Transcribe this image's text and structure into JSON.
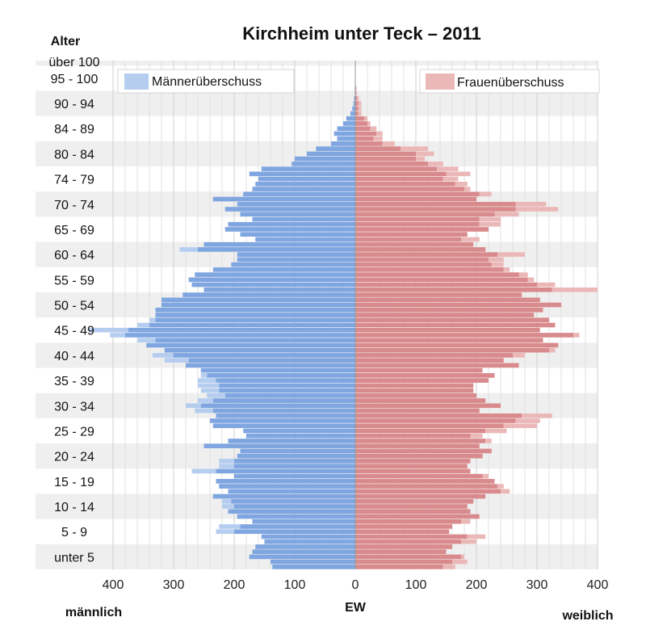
{
  "chart_data": {
    "type": "bar",
    "subtype": "population-pyramid",
    "title": "Kirchheim unter Teck – 2011",
    "y_axis_title": "Alter",
    "xlabel": "EW",
    "left_side_label": "männlich",
    "right_side_label": "weiblich",
    "xlim": [
      -400,
      400
    ],
    "x_ticks": [
      {
        "value": -400,
        "label": "400"
      },
      {
        "value": -300,
        "label": "300"
      },
      {
        "value": -200,
        "label": "200"
      },
      {
        "value": -100,
        "label": "100"
      },
      {
        "value": 0,
        "label": "0"
      },
      {
        "value": 100,
        "label": "100"
      },
      {
        "value": 200,
        "label": "200"
      },
      {
        "value": 300,
        "label": "300"
      },
      {
        "value": 400,
        "label": "400"
      }
    ],
    "age_group_labels": [
      "über 100",
      "95 - 100",
      "90 - 94",
      "84 - 89",
      "80 - 84",
      "74 - 79",
      "70 - 74",
      "65 - 69",
      "60 - 64",
      "55 - 59",
      "50 - 54",
      "45 - 49",
      "40 - 44",
      "35 - 39",
      "30 - 34",
      "25 - 29",
      "20 - 24",
      "15 - 19",
      "10 - 14",
      "5 - 9",
      "unter 5"
    ],
    "legend": [
      {
        "name": "Männerüberschuss",
        "color": "#b5cdef",
        "position": "top-left"
      },
      {
        "name": "Frauenüberschuss",
        "color": "#ebb8b8",
        "position": "top-right"
      }
    ],
    "colors": {
      "male": "#7fa6e0",
      "female": "#d98a8c",
      "male_surplus": "#b5cdef",
      "female_surplus": "#ebb8b8",
      "band": "#efefef"
    },
    "ages": [
      0,
      1,
      2,
      3,
      4,
      5,
      6,
      7,
      8,
      9,
      10,
      11,
      12,
      13,
      14,
      15,
      16,
      17,
      18,
      19,
      20,
      21,
      22,
      23,
      24,
      25,
      26,
      27,
      28,
      29,
      30,
      31,
      32,
      33,
      34,
      35,
      36,
      37,
      38,
      39,
      40,
      41,
      42,
      43,
      44,
      45,
      46,
      47,
      48,
      49,
      50,
      51,
      52,
      53,
      54,
      55,
      56,
      57,
      58,
      59,
      60,
      61,
      62,
      63,
      64,
      65,
      66,
      67,
      68,
      69,
      70,
      71,
      72,
      73,
      74,
      75,
      76,
      77,
      78,
      79,
      80,
      81,
      82,
      83,
      84,
      85,
      86,
      87,
      88,
      89,
      90,
      91,
      92,
      93,
      94,
      95,
      96,
      97,
      98,
      99,
      100
    ],
    "male": [
      137,
      140,
      175,
      170,
      165,
      150,
      155,
      200,
      190,
      170,
      195,
      210,
      200,
      205,
      235,
      210,
      225,
      230,
      200,
      230,
      200,
      200,
      195,
      190,
      250,
      210,
      180,
      185,
      235,
      240,
      230,
      235,
      255,
      235,
      215,
      225,
      225,
      230,
      245,
      255,
      280,
      275,
      300,
      315,
      345,
      330,
      380,
      375,
      340,
      330,
      330,
      330,
      320,
      320,
      285,
      250,
      270,
      275,
      265,
      235,
      205,
      195,
      195,
      260,
      250,
      165,
      190,
      215,
      210,
      170,
      190,
      215,
      195,
      235,
      185,
      170,
      165,
      160,
      175,
      155,
      105,
      100,
      80,
      65,
      40,
      30,
      35,
      30,
      20,
      15,
      8,
      5,
      3,
      2,
      1,
      1,
      0,
      0,
      0,
      0,
      0
    ],
    "female": [
      145,
      160,
      175,
      150,
      160,
      175,
      185,
      155,
      160,
      175,
      205,
      190,
      185,
      195,
      215,
      240,
      235,
      230,
      210,
      190,
      185,
      190,
      210,
      225,
      205,
      215,
      190,
      215,
      245,
      265,
      275,
      205,
      240,
      215,
      200,
      195,
      195,
      220,
      230,
      210,
      270,
      245,
      260,
      320,
      335,
      310,
      360,
      305,
      330,
      320,
      295,
      310,
      340,
      305,
      275,
      325,
      300,
      285,
      270,
      245,
      225,
      220,
      235,
      215,
      195,
      175,
      185,
      220,
      205,
      205,
      230,
      265,
      265,
      200,
      205,
      180,
      165,
      145,
      150,
      135,
      120,
      100,
      100,
      75,
      45,
      30,
      35,
      25,
      20,
      15,
      5,
      5,
      5,
      3,
      1,
      1,
      0,
      0,
      0,
      0,
      0
    ],
    "male_surplus": [
      0,
      0,
      0,
      0,
      0,
      0,
      0,
      30,
      35,
      0,
      0,
      0,
      20,
      15,
      0,
      0,
      0,
      0,
      0,
      40,
      25,
      25,
      0,
      0,
      0,
      0,
      0,
      0,
      0,
      0,
      0,
      30,
      25,
      25,
      30,
      30,
      35,
      30,
      10,
      0,
      0,
      40,
      35,
      0,
      0,
      30,
      25,
      65,
      20,
      10,
      0,
      0,
      0,
      0,
      0,
      0,
      0,
      0,
      0,
      0,
      0,
      0,
      0,
      30,
      0,
      0,
      0,
      0,
      0,
      0,
      0,
      0,
      0,
      0,
      0,
      0,
      0,
      0,
      0,
      0,
      0,
      0,
      0,
      0,
      0,
      0,
      0,
      0,
      0,
      0,
      0,
      0,
      0,
      0,
      0,
      0,
      0,
      0,
      0,
      0,
      0
    ],
    "female_surplus": [
      20,
      25,
      5,
      0,
      0,
      25,
      30,
      0,
      0,
      15,
      0,
      0,
      0,
      0,
      0,
      15,
      10,
      0,
      10,
      0,
      0,
      0,
      0,
      0,
      0,
      10,
      20,
      35,
      55,
      40,
      50,
      0,
      0,
      0,
      0,
      0,
      0,
      0,
      0,
      0,
      0,
      0,
      20,
      10,
      0,
      0,
      10,
      0,
      0,
      0,
      0,
      0,
      0,
      0,
      0,
      75,
      30,
      10,
      15,
      10,
      20,
      25,
      45,
      0,
      0,
      30,
      0,
      0,
      35,
      35,
      40,
      70,
      50,
      0,
      20,
      10,
      20,
      25,
      40,
      35,
      25,
      15,
      30,
      45,
      20,
      15,
      10,
      10,
      5,
      5,
      5,
      5,
      5,
      3,
      2,
      1,
      0,
      0,
      0,
      0,
      0
    ]
  }
}
